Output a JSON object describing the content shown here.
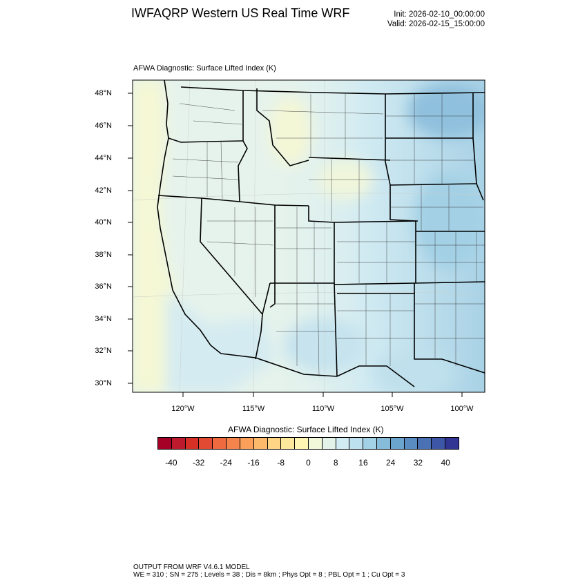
{
  "header": {
    "title": "IWFAQRP Western US Real Time WRF",
    "init": "Init: 2026-02-10_00:00:00",
    "valid": "Valid: 2026-02-15_15:00:00"
  },
  "map": {
    "subtitle": "AFWA Diagnostic: Surface Lifted Index   (K)",
    "lat_labels": [
      "48°N",
      "46°N",
      "44°N",
      "42°N",
      "40°N",
      "38°N",
      "36°N",
      "34°N",
      "32°N",
      "30°N"
    ],
    "lon_labels": [
      "120°W",
      "115°W",
      "110°W",
      "105°W",
      "100°W"
    ],
    "field_colors": {
      "ocean_west": "#f5f8d4",
      "land": "#e6f3ec",
      "east_light": "#cfe7f0",
      "east_mid": "#a9d2e6",
      "east_dark": "#8fc0dd"
    }
  },
  "colorbar": {
    "title": "AFWA Diagnostic: Surface Lifted Index  (K)",
    "labels": [
      "-40",
      "-32",
      "-24",
      "-16",
      "-8",
      "0",
      "8",
      "16",
      "24",
      "32",
      "40"
    ],
    "colors": [
      "#a50026",
      "#be1a2e",
      "#d73027",
      "#e34a33",
      "#f06a40",
      "#f4844b",
      "#fba05b",
      "#fdb96b",
      "#fed585",
      "#fee89b",
      "#fef6b2",
      "#f1f8d9",
      "#e3f3ea",
      "#d2ecf3",
      "#bde1ee",
      "#a3d1e5",
      "#86bcda",
      "#6ba4cd",
      "#5a8cc1",
      "#4a71b4",
      "#3d56a6",
      "#313695"
    ]
  },
  "footer": {
    "line1": "OUTPUT FROM WRF V4.6.1 MODEL",
    "line2": "WE = 310 ; SN = 275 ; Levels = 38 ; Dis = 8km ; Phys Opt = 8 ; PBL Opt = 1 ; Cu Opt = 3"
  }
}
